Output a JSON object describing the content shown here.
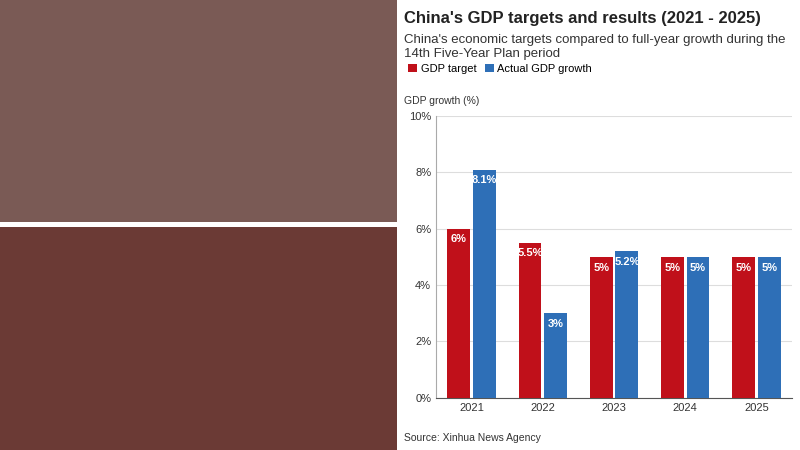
{
  "chart_data": {
    "type": "bar",
    "title": "China's GDP targets and results (2021 - 2025)",
    "subtitle": "China's economic targets compared to full-year growth during the 14th Five-Year Plan period",
    "y_label": "GDP growth (%)",
    "source": "Source: Xinhua News Agency",
    "categories": [
      "2021",
      "2022",
      "2023",
      "2024",
      "2025"
    ],
    "series": [
      {
        "name": "GDP target",
        "color": "#c0101a",
        "values": [
          6,
          5.5,
          5,
          5,
          5
        ],
        "value_labels": [
          "6%",
          "5.5%",
          "5%",
          "5%",
          "5%"
        ]
      },
      {
        "name": "Actual GDP growth",
        "color": "#2e6fb7",
        "values": [
          8.1,
          3,
          5.2,
          5,
          5
        ],
        "value_labels": [
          "8.1%",
          "3%",
          "5.2%",
          "5%",
          "5%"
        ]
      }
    ],
    "ylim": [
      0,
      10
    ],
    "yticks": [
      {
        "value": 0,
        "label": "0%"
      },
      {
        "value": 2,
        "label": "2%"
      },
      {
        "value": 4,
        "label": "4%"
      },
      {
        "value": 6,
        "label": "6%"
      },
      {
        "value": 8,
        "label": "8%"
      },
      {
        "value": 10,
        "label": "10%"
      }
    ],
    "grid": true,
    "legend": "upper left",
    "data_labels": true
  }
}
